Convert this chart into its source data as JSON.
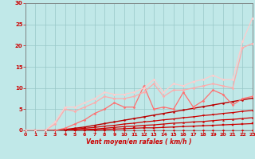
{
  "xlabel": "Vent moyen/en rafales ( km/h )",
  "bg_color": "#c0e8e8",
  "grid_color": "#98c8c8",
  "xlim": [
    0,
    23
  ],
  "ylim": [
    0,
    30
  ],
  "xticks": [
    0,
    1,
    2,
    3,
    4,
    5,
    6,
    7,
    8,
    9,
    10,
    11,
    12,
    13,
    14,
    15,
    16,
    17,
    18,
    19,
    20,
    21,
    22,
    23
  ],
  "yticks": [
    0,
    5,
    10,
    15,
    20,
    25,
    30
  ],
  "series": [
    {
      "x": [
        0,
        1,
        2,
        3,
        4,
        5,
        6,
        7,
        8,
        9,
        10,
        11,
        12,
        13,
        14,
        15,
        16,
        17,
        18,
        19,
        20,
        21,
        22,
        23
      ],
      "y": [
        0,
        0,
        0,
        0,
        0,
        0,
        0,
        0,
        0,
        0,
        0,
        0,
        0,
        0,
        0,
        0,
        0,
        0,
        0,
        0,
        0,
        0,
        0,
        0
      ],
      "color": "#dd0000",
      "lw": 0.9,
      "marker": "D",
      "ms": 1.5
    },
    {
      "x": [
        0,
        1,
        2,
        3,
        4,
        5,
        6,
        7,
        8,
        9,
        10,
        11,
        12,
        13,
        14,
        15,
        16,
        17,
        18,
        19,
        20,
        21,
        22,
        23
      ],
      "y": [
        0,
        0,
        0,
        0,
        0,
        0,
        0,
        0.1,
        0.2,
        0.3,
        0.4,
        0.5,
        0.6,
        0.6,
        0.7,
        0.8,
        0.9,
        1.0,
        1.1,
        1.2,
        1.3,
        1.4,
        1.5,
        1.6
      ],
      "color": "#cc0000",
      "lw": 0.9,
      "marker": "s",
      "ms": 1.5
    },
    {
      "x": [
        0,
        1,
        2,
        3,
        4,
        5,
        6,
        7,
        8,
        9,
        10,
        11,
        12,
        13,
        14,
        15,
        16,
        17,
        18,
        19,
        20,
        21,
        22,
        23
      ],
      "y": [
        0,
        0,
        0,
        0,
        0,
        0.1,
        0.2,
        0.3,
        0.5,
        0.7,
        0.9,
        1.0,
        1.2,
        1.3,
        1.5,
        1.7,
        1.8,
        2.0,
        2.1,
        2.3,
        2.5,
        2.6,
        2.8,
        3.0
      ],
      "color": "#cc0000",
      "lw": 0.9,
      "marker": "^",
      "ms": 1.5
    },
    {
      "x": [
        0,
        1,
        2,
        3,
        4,
        5,
        6,
        7,
        8,
        9,
        10,
        11,
        12,
        13,
        14,
        15,
        16,
        17,
        18,
        19,
        20,
        21,
        22,
        23
      ],
      "y": [
        0,
        0,
        0,
        0,
        0.1,
        0.3,
        0.5,
        0.7,
        1.0,
        1.2,
        1.5,
        1.7,
        2.0,
        2.2,
        2.5,
        2.7,
        3.0,
        3.2,
        3.5,
        3.7,
        4.0,
        4.2,
        4.5,
        4.7
      ],
      "color": "#cc0000",
      "lw": 0.9,
      "marker": "v",
      "ms": 1.5
    },
    {
      "x": [
        0,
        1,
        2,
        3,
        4,
        5,
        6,
        7,
        8,
        9,
        10,
        11,
        12,
        13,
        14,
        15,
        16,
        17,
        18,
        19,
        20,
        21,
        22,
        23
      ],
      "y": [
        0,
        0,
        0,
        0,
        0.2,
        0.5,
        0.8,
        1.2,
        1.6,
        2.0,
        2.4,
        2.8,
        3.2,
        3.6,
        4.0,
        4.4,
        4.8,
        5.2,
        5.6,
        6.0,
        6.4,
        6.8,
        7.2,
        7.6
      ],
      "color": "#bb0000",
      "lw": 1.0,
      "marker": "o",
      "ms": 1.5
    },
    {
      "x": [
        0,
        1,
        2,
        3,
        4,
        5,
        6,
        7,
        8,
        9,
        10,
        11,
        12,
        13,
        14,
        15,
        16,
        17,
        18,
        19,
        20,
        21,
        22,
        23
      ],
      "y": [
        0,
        0,
        0,
        0,
        0.5,
        1.5,
        2.5,
        4.0,
        5.0,
        6.5,
        5.5,
        5.5,
        10.5,
        5.0,
        5.5,
        5.0,
        9.0,
        5.5,
        7.0,
        9.5,
        8.5,
        6.0,
        7.5,
        8.0
      ],
      "color": "#ff7070",
      "lw": 0.9,
      "marker": "D",
      "ms": 1.5
    },
    {
      "x": [
        0,
        1,
        2,
        3,
        4,
        5,
        6,
        7,
        8,
        9,
        10,
        11,
        12,
        13,
        14,
        15,
        16,
        17,
        18,
        19,
        20,
        21,
        22,
        23
      ],
      "y": [
        0,
        0,
        0,
        1.5,
        5.0,
        4.5,
        5.5,
        6.5,
        8.0,
        7.5,
        7.5,
        8.0,
        9.0,
        11.0,
        8.0,
        9.5,
        9.5,
        10.0,
        10.5,
        11.0,
        10.5,
        10.0,
        19.5,
        20.5
      ],
      "color": "#ffaaaa",
      "lw": 0.9,
      "marker": "D",
      "ms": 1.5
    },
    {
      "x": [
        0,
        1,
        2,
        3,
        4,
        5,
        6,
        7,
        8,
        9,
        10,
        11,
        12,
        13,
        14,
        15,
        16,
        17,
        18,
        19,
        20,
        21,
        22,
        23
      ],
      "y": [
        0,
        0,
        0,
        2.0,
        5.5,
        5.5,
        6.5,
        7.5,
        9.0,
        8.5,
        8.5,
        9.0,
        10.0,
        12.0,
        9.0,
        11.0,
        10.5,
        11.5,
        12.0,
        13.0,
        12.0,
        12.0,
        21.0,
        26.5
      ],
      "color": "#ffcccc",
      "lw": 0.9,
      "marker": "D",
      "ms": 1.5
    }
  ]
}
